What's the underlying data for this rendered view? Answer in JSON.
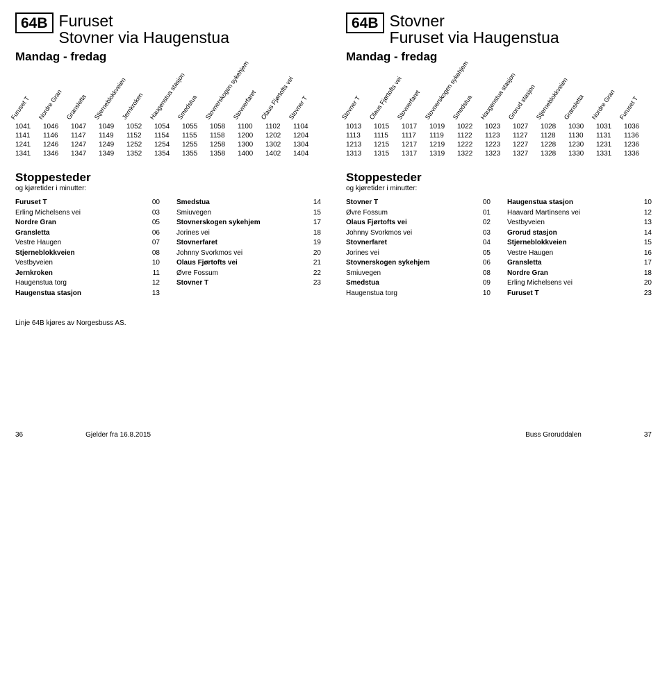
{
  "left": {
    "badge": "64B",
    "title1": "Furuset",
    "title2": "Stovner via Haugenstua",
    "days": "Mandag - fredag",
    "headers": [
      "Furuset T",
      "Nordre Gran",
      "Gransletta",
      "Stjerneblokkveien",
      "Jernkroken",
      "Haugenstua stasjon",
      "Smedstua",
      "Stovnerskogen sykehjem",
      "Stovnerfaret",
      "Olaus Fjørtofts vei",
      "Stovner T"
    ],
    "rows": [
      [
        "1041",
        "1046",
        "1047",
        "1049",
        "1052",
        "1054",
        "1055",
        "1058",
        "1100",
        "1102",
        "1104"
      ],
      [
        "1141",
        "1146",
        "1147",
        "1149",
        "1152",
        "1154",
        "1155",
        "1158",
        "1200",
        "1202",
        "1204"
      ],
      [
        "1241",
        "1246",
        "1247",
        "1249",
        "1252",
        "1254",
        "1255",
        "1258",
        "1300",
        "1302",
        "1304"
      ],
      [
        "1341",
        "1346",
        "1347",
        "1349",
        "1352",
        "1354",
        "1355",
        "1358",
        "1400",
        "1402",
        "1404"
      ]
    ],
    "stops_title": "Stoppesteder",
    "stops_sub": "og kjøretider i minutter:",
    "stops": [
      {
        "name": "Furuset T",
        "min": "00",
        "bold": true
      },
      {
        "name": "Erling Michelsens vei",
        "min": "03",
        "bold": false
      },
      {
        "name": "Nordre Gran",
        "min": "05",
        "bold": true
      },
      {
        "name": "Gransletta",
        "min": "06",
        "bold": true
      },
      {
        "name": "Vestre Haugen",
        "min": "07",
        "bold": false
      },
      {
        "name": "Stjerneblokkveien",
        "min": "08",
        "bold": true
      },
      {
        "name": "Vestbyveien",
        "min": "10",
        "bold": false
      },
      {
        "name": "Jernkroken",
        "min": "11",
        "bold": true
      },
      {
        "name": "Haugenstua torg",
        "min": "12",
        "bold": false
      },
      {
        "name": "Haugenstua stasjon",
        "min": "13",
        "bold": true
      }
    ],
    "stops2": [
      {
        "name": "Smedstua",
        "min": "14",
        "bold": true
      },
      {
        "name": "Smiuvegen",
        "min": "15",
        "bold": false
      },
      {
        "name": "Stovnerskogen sykehjem",
        "min": "17",
        "bold": true
      },
      {
        "name": "Jorines vei",
        "min": "18",
        "bold": false
      },
      {
        "name": "Stovnerfaret",
        "min": "19",
        "bold": true
      },
      {
        "name": "Johnny Svorkmos vei",
        "min": "20",
        "bold": false
      },
      {
        "name": "Olaus Fjørtofts vei",
        "min": "21",
        "bold": true
      },
      {
        "name": "Øvre Fossum",
        "min": "22",
        "bold": false
      },
      {
        "name": "Stovner T",
        "min": "23",
        "bold": true
      }
    ]
  },
  "right": {
    "badge": "64B",
    "title1": "Stovner",
    "title2": "Furuset via Haugenstua",
    "days": "Mandag - fredag",
    "headers": [
      "Stovner T",
      "Olaus Fjørtofts vei",
      "Stovnerfaret",
      "Stovnerskogen sykehjem",
      "Smedstua",
      "Haugenstua stasjon",
      "Grorud stasjon",
      "Stjerneblokkveien",
      "Gransletta",
      "Nordre Gran",
      "Furuset T"
    ],
    "rows": [
      [
        "1013",
        "1015",
        "1017",
        "1019",
        "1022",
        "1023",
        "1027",
        "1028",
        "1030",
        "1031",
        "1036"
      ],
      [
        "1113",
        "1115",
        "1117",
        "1119",
        "1122",
        "1123",
        "1127",
        "1128",
        "1130",
        "1131",
        "1136"
      ],
      [
        "1213",
        "1215",
        "1217",
        "1219",
        "1222",
        "1223",
        "1227",
        "1228",
        "1230",
        "1231",
        "1236"
      ],
      [
        "1313",
        "1315",
        "1317",
        "1319",
        "1322",
        "1323",
        "1327",
        "1328",
        "1330",
        "1331",
        "1336"
      ]
    ],
    "stops_title": "Stoppesteder",
    "stops_sub": "og kjøretider i minutter:",
    "stops": [
      {
        "name": "Stovner T",
        "min": "00",
        "bold": true
      },
      {
        "name": "Øvre Fossum",
        "min": "01",
        "bold": false
      },
      {
        "name": "Olaus Fjørtofts vei",
        "min": "02",
        "bold": true
      },
      {
        "name": "Johnny Svorkmos vei",
        "min": "03",
        "bold": false
      },
      {
        "name": "Stovnerfaret",
        "min": "04",
        "bold": true
      },
      {
        "name": "Jorines vei",
        "min": "05",
        "bold": false
      },
      {
        "name": "Stovnerskogen sykehjem",
        "min": "06",
        "bold": true
      },
      {
        "name": "Smiuvegen",
        "min": "08",
        "bold": false
      },
      {
        "name": "Smedstua",
        "min": "09",
        "bold": true
      },
      {
        "name": "Haugenstua torg",
        "min": "10",
        "bold": false
      }
    ],
    "stops2": [
      {
        "name": "Haugenstua stasjon",
        "min": "10",
        "bold": true
      },
      {
        "name": "Haavard Martinsens vei",
        "min": "12",
        "bold": false
      },
      {
        "name": "Vestbyveien",
        "min": "13",
        "bold": false
      },
      {
        "name": "Grorud stasjon",
        "min": "14",
        "bold": true
      },
      {
        "name": "Stjerneblokkveien",
        "min": "15",
        "bold": true
      },
      {
        "name": "Vestre Haugen",
        "min": "16",
        "bold": false
      },
      {
        "name": "Gransletta",
        "min": "17",
        "bold": true
      },
      {
        "name": "Nordre Gran",
        "min": "18",
        "bold": true
      },
      {
        "name": "Erling Michelsens vei",
        "min": "20",
        "bold": false
      },
      {
        "name": "Furuset T",
        "min": "23",
        "bold": true
      }
    ]
  },
  "operator_note": "Linje 64B kjøres av Norgesbuss AS.",
  "footer": {
    "left_page": "36",
    "valid_from": "Gjelder fra 16.8.2015",
    "book": "Buss Groruddalen",
    "right_page": "37"
  }
}
